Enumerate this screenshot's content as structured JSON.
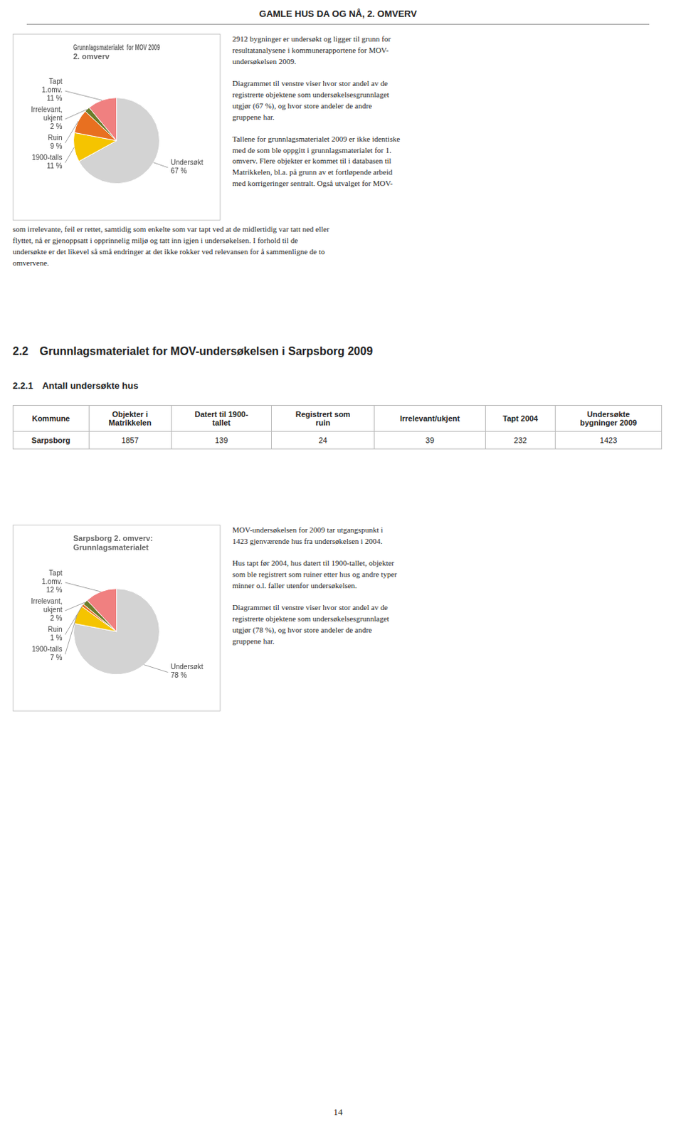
{
  "title": "GAMLE HUS DA OG NÅ, 2. OMVERV",
  "page_number": "14",
  "text_block1": [
    "2912 bygninger er undersøkt og ligger til grunn for\nresultatanalysene i kommunerapportene for MOV-\nundersøkelsen 2009.",
    "Diagrammet til venstre viser hvor stor andel av de\nregistrerte objektene som undersøkelsesgrunnlaget\nutgjør (67 %), og hvor store andeler de andre\ngruppene har.",
    "Tallene for grunnlagsmaterialet 2009 er ikke identiske\nmed de som ble oppgitt i grunnlagsmaterialet for 1.\nomverv. Flere objekter er kommet til i databasen til\nMatrikkelen, bl.a. på grunn av et fortløpende arbeid\nmed korrigeringer sentralt. Også utvalget for MOV-"
  ],
  "text_block1_cont": "som irrelevante, feil er rettet, samtidig som enkelte som var tapt ved at de midlertidig var tatt ned eller\nflyttet, nå er gjenoppsatt i opprinnelig miljø og tatt inn igjen i undersøkelsen. I forhold til de\nundersøkte er det likevel så små endringer at det ikke rokker ved relevansen for å sammenligne de to\nomvervene.",
  "section_title": "2.2 Grunnlagsmaterialet for MOV-undersøkelsen i Sarpsborg 2009",
  "subsection_title": "2.2.1 Antall undersøkte hus",
  "table": {
    "headers": [
      "Kommune",
      "Objekter i\nMatrikkelen",
      "Datert til 1900-\ntallet",
      "Registrert som\nruin",
      "Irrelevant/ukjent",
      "Tapt 2004",
      "Undersøkte\nbygninger 2009"
    ],
    "rows": [
      [
        "Sarpsborg",
        "1857",
        "139",
        "24",
        "39",
        "232",
        "1423"
      ]
    ]
  },
  "text_block2": [
    "MOV-undersøkelsen for 2009 tar utgangspunkt i\n1423 gjenværende hus fra undersøkelsen i 2004.",
    "Hus tapt før 2004, hus datert til 1900-tallet, objekter\nsom ble registrert som ruiner etter hus og andre typer\nminner o.l. faller utenfor undersøkelsen.",
    "Diagrammet til venstre viser hvor stor andel av de\nregistrerte objektene som undersøkelsesgrunnlaget\nutgjør (78 %), og hvor store andeler de andre\ngruppene har."
  ],
  "chart_data": [
    {
      "type": "pie",
      "title": [
        "Grunnlagsmaterialet  for MOV 2009",
        "2. omverv"
      ],
      "categories": [
        "Undersøkt",
        "1900-talls",
        "Ruin",
        "Irrelevant, ukjent",
        "Tapt 1.omv."
      ],
      "values": [
        67,
        11,
        9,
        2,
        11
      ],
      "value_labels": [
        "67 %",
        "11 %",
        "9 %",
        "2 %",
        "11 %"
      ],
      "colors": [
        "#d3d3d3",
        "#f5c400",
        "#e87020",
        "#6b7c2a",
        "#f08080"
      ],
      "data_labels": true
    },
    {
      "type": "pie",
      "title": [
        "Sarpsborg 2. omverv:",
        "Grunnlagsmaterialet"
      ],
      "categories": [
        "Undersøkt",
        "1900-talls",
        "Ruin",
        "Irrelevant, ukjent",
        "Tapt 1.omv."
      ],
      "values": [
        78,
        7,
        1,
        2,
        12
      ],
      "value_labels": [
        "78 %",
        "7 %",
        "1 %",
        "2 %",
        "12 %"
      ],
      "colors": [
        "#d3d3d3",
        "#f5c400",
        "#e87020",
        "#6b7c2a",
        "#f08080"
      ],
      "data_labels": true
    }
  ]
}
